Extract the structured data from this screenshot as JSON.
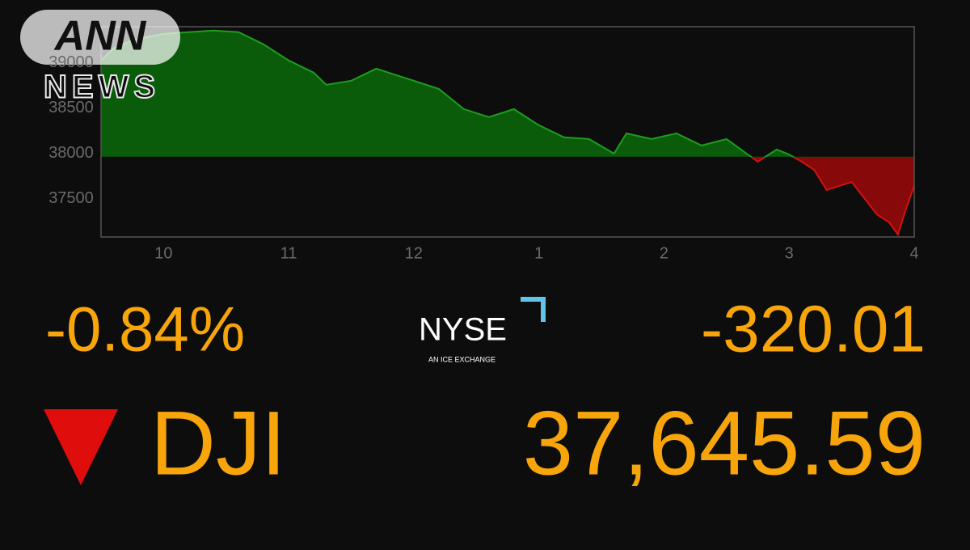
{
  "broadcaster": {
    "name": "ANN",
    "sub": "NEWS"
  },
  "exchange": {
    "name": "NYSE",
    "tagline": "AN ICE EXCHANGE"
  },
  "quote": {
    "change_percent": "-0.84%",
    "change_points": "-320.01",
    "symbol": "DJI",
    "last": "37,645.59"
  },
  "chart_data": {
    "type": "area",
    "baseline": 37965.6,
    "up_color": "#1e9c1e",
    "up_fill": "#0a5c0a",
    "down_color": "#d01212",
    "down_fill": "#870909",
    "x": [
      9.5,
      9.6,
      9.75,
      9.9,
      10.0,
      10.2,
      10.4,
      10.6,
      10.8,
      11.0,
      11.2,
      11.3,
      11.5,
      11.7,
      11.9,
      12.0,
      12.2,
      12.4,
      12.6,
      12.8,
      13.0,
      13.2,
      13.4,
      13.6,
      13.7,
      13.9,
      14.1,
      14.3,
      14.5,
      14.75,
      14.9,
      15.0,
      15.1,
      15.2,
      15.3,
      15.4,
      15.5,
      15.6,
      15.7,
      15.8,
      15.87,
      15.93,
      16.0
    ],
    "values": [
      39027,
      39161,
      39250,
      39295,
      39321,
      39340,
      39357,
      39340,
      39205,
      39027,
      38893,
      38759,
      38804,
      38938,
      38848,
      38804,
      38714,
      38491,
      38402,
      38491,
      38313,
      38179,
      38161,
      38000,
      38223,
      38161,
      38223,
      38089,
      38161,
      37911,
      38045,
      37990,
      37911,
      37821,
      37598,
      37643,
      37687,
      37509,
      37330,
      37241,
      37107,
      37375,
      37643
    ],
    "xlim": [
      9.5,
      16
    ],
    "ylim": [
      37080,
      39400
    ],
    "xticks": [
      {
        "value": 10,
        "label": "10"
      },
      {
        "value": 11,
        "label": "11"
      },
      {
        "value": 12,
        "label": "12"
      },
      {
        "value": 13,
        "label": "1"
      },
      {
        "value": 14,
        "label": "2"
      },
      {
        "value": 15,
        "label": "3"
      },
      {
        "value": 16,
        "label": "4"
      }
    ],
    "yticks": [
      37500,
      38000,
      38500,
      39000
    ]
  }
}
